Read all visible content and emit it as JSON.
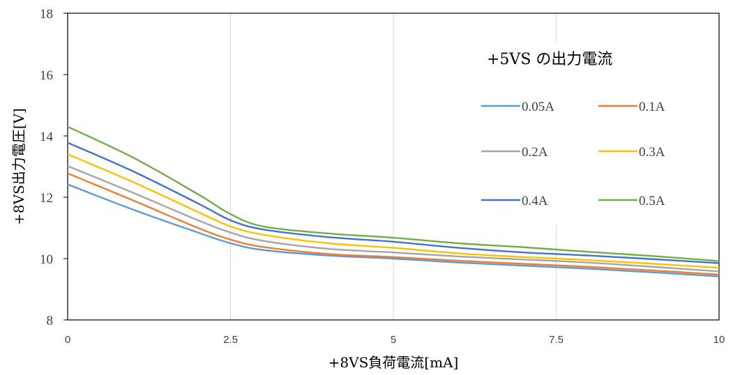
{
  "chart_data": {
    "type": "line",
    "title": "",
    "xlabel": "+8VS負荷電流[mA]",
    "ylabel": "+8VS出力電圧[V]",
    "xlim": [
      0,
      10
    ],
    "ylim": [
      8,
      18
    ],
    "x_ticks": [
      "0",
      "2.5",
      "5",
      "7.5",
      "10"
    ],
    "y_ticks": [
      "8",
      "10",
      "12",
      "14",
      "16",
      "18"
    ],
    "grid": "vertical",
    "legend_title": "+5VS の出力電流",
    "legend_position": "top-right",
    "x": [
      0,
      1,
      2,
      2.5,
      3,
      4,
      5,
      6,
      7,
      8,
      9,
      10
    ],
    "series": [
      {
        "name": "0.05A",
        "color": "#5B9BD5",
        "values": [
          12.42,
          11.6,
          10.85,
          10.5,
          10.28,
          10.1,
          10.0,
          9.87,
          9.77,
          9.67,
          9.55,
          9.42
        ]
      },
      {
        "name": "0.1A",
        "color": "#ED7D31",
        "values": [
          12.78,
          11.9,
          11.0,
          10.62,
          10.38,
          10.15,
          10.05,
          9.93,
          9.83,
          9.73,
          9.61,
          9.48
        ]
      },
      {
        "name": "0.2A",
        "color": "#A5A5A5",
        "values": [
          13.02,
          12.15,
          11.25,
          10.85,
          10.58,
          10.32,
          10.2,
          10.07,
          9.97,
          9.87,
          9.73,
          9.58
        ]
      },
      {
        "name": "0.3A",
        "color": "#FFC000",
        "values": [
          13.4,
          12.5,
          11.52,
          11.05,
          10.78,
          10.5,
          10.35,
          10.17,
          10.05,
          9.95,
          9.83,
          9.7
        ]
      },
      {
        "name": "0.4A",
        "color": "#4472C4",
        "values": [
          13.78,
          12.85,
          11.8,
          11.25,
          10.95,
          10.7,
          10.55,
          10.35,
          10.2,
          10.1,
          9.98,
          9.85
        ]
      },
      {
        "name": "0.5A",
        "color": "#70AD47",
        "values": [
          14.3,
          13.3,
          12.1,
          11.45,
          11.05,
          10.82,
          10.68,
          10.5,
          10.37,
          10.22,
          10.08,
          9.92
        ]
      }
    ]
  }
}
